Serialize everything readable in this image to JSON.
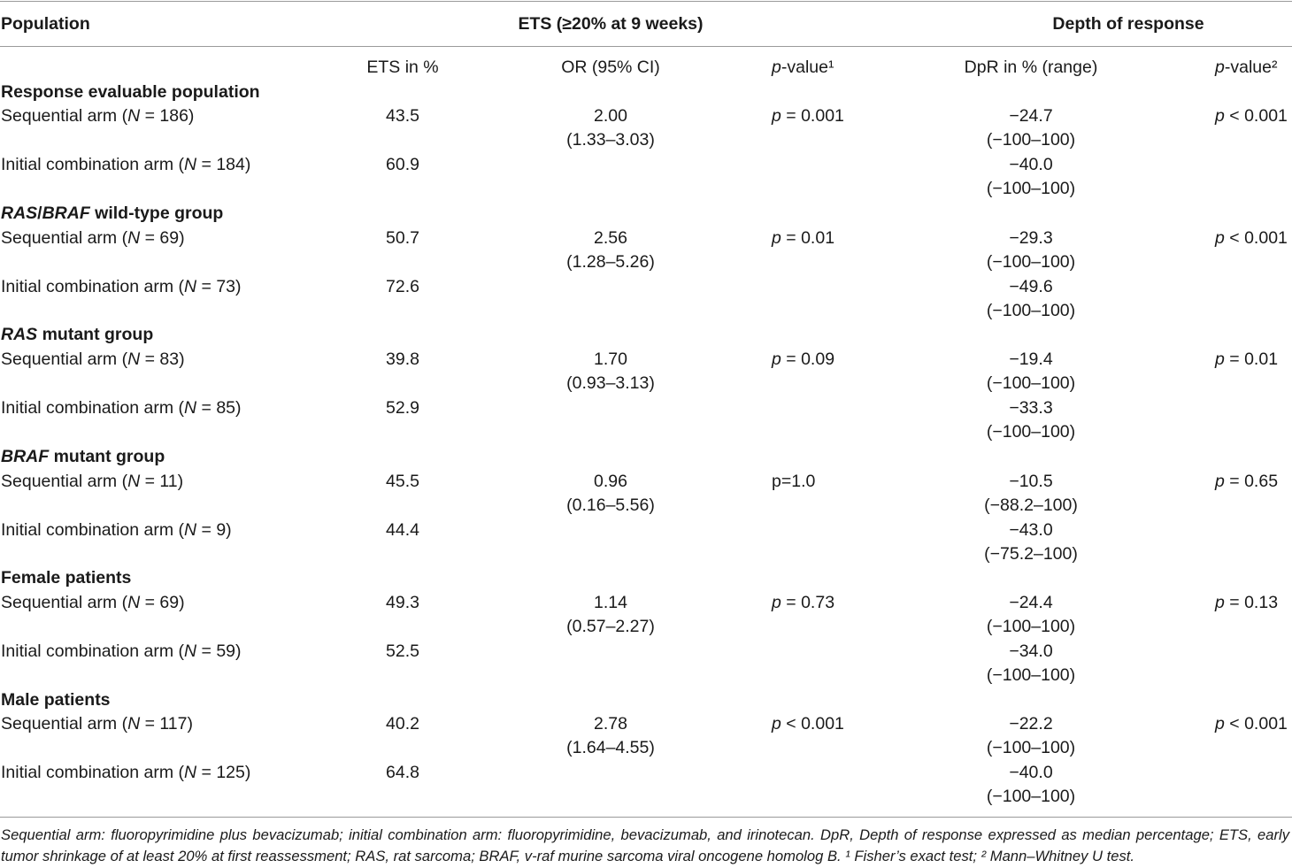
{
  "header": {
    "population": "Population",
    "ets_group": "ETS (≥20% at 9 weeks)",
    "depth_group": "Depth of response"
  },
  "columns": {
    "ets": "ETS in %",
    "or": "OR (95% CI)",
    "p1_prefix": "p",
    "p1_suffix": "-value¹",
    "dpr": "DpR in % (range)",
    "p2_prefix": "p",
    "p2_suffix": "-value²"
  },
  "groups": [
    {
      "title": "Response evaluable population",
      "rows": [
        {
          "arm": "Sequential arm (",
          "n": "N",
          "count": " = 186)",
          "ets": "43.5",
          "or": "2.00",
          "ci": "(1.33–3.03)",
          "p1_p": "p",
          "p1_v": " = 0.001",
          "dpr": "−24.7",
          "range": "(−100–100)",
          "p2_p": "p",
          "p2_v": " < 0.001"
        },
        {
          "arm": "Initial combination arm (",
          "n": "N",
          "count": " = 184)",
          "ets": "60.9",
          "or": "",
          "ci": "",
          "p1_p": "",
          "p1_v": "",
          "dpr": "−40.0",
          "range": "(−100–100)",
          "p2_p": "",
          "p2_v": ""
        }
      ]
    },
    {
      "title_it1": "RAS",
      "title_sep": "/",
      "title_it2": "BRAF",
      "title_rest": " wild-type group",
      "rows": [
        {
          "arm": "Sequential arm (",
          "n": "N",
          "count": " = 69)",
          "ets": "50.7",
          "or": "2.56",
          "ci": "(1.28–5.26)",
          "p1_p": "p",
          "p1_v": " = 0.01",
          "dpr": "−29.3",
          "range": "(−100–100)",
          "p2_p": "p",
          "p2_v": " < 0.001"
        },
        {
          "arm": "Initial combination arm (",
          "n": "N",
          "count": " = 73)",
          "ets": "72.6",
          "or": "",
          "ci": "",
          "p1_p": "",
          "p1_v": "",
          "dpr": "−49.6",
          "range": "(−100–100)",
          "p2_p": "",
          "p2_v": ""
        }
      ]
    },
    {
      "title_it1": "RAS",
      "title_rest": " mutant group",
      "rows": [
        {
          "arm": "Sequential arm (",
          "n": "N",
          "count": " = 83)",
          "ets": "39.8",
          "or": "1.70",
          "ci": "(0.93–3.13)",
          "p1_p": "p",
          "p1_v": " = 0.09",
          "dpr": "−19.4",
          "range": "(−100–100)",
          "p2_p": "p",
          "p2_v": " = 0.01"
        },
        {
          "arm": "Initial combination arm (",
          "n": "N",
          "count": " = 85)",
          "ets": "52.9",
          "or": "",
          "ci": "",
          "p1_p": "",
          "p1_v": "",
          "dpr": "−33.3",
          "range": "(−100–100)",
          "p2_p": "",
          "p2_v": ""
        }
      ]
    },
    {
      "title_it1": "BRAF",
      "title_rest": " mutant group",
      "rows": [
        {
          "arm": "Sequential arm (",
          "n": "N",
          "count": " = 11)",
          "ets": "45.5",
          "or": "0.96",
          "ci": "(0.16–5.56)",
          "p1_p": "",
          "p1_v": "p=1.0",
          "dpr": "−10.5",
          "range": "(−88.2–100)",
          "p2_p": "p",
          "p2_v": " = 0.65"
        },
        {
          "arm": "Initial combination arm (",
          "n": "N",
          "count": " = 9)",
          "ets": "44.4",
          "or": "",
          "ci": "",
          "p1_p": "",
          "p1_v": "",
          "dpr": "−43.0",
          "range": "(−75.2–100)",
          "p2_p": "",
          "p2_v": ""
        }
      ]
    },
    {
      "title": "Female patients",
      "rows": [
        {
          "arm": "Sequential arm (",
          "n": "N",
          "count": " = 69)",
          "ets": "49.3",
          "or": "1.14",
          "ci": "(0.57–2.27)",
          "p1_p": "p",
          "p1_v": " = 0.73",
          "dpr": "−24.4",
          "range": "(−100–100)",
          "p2_p": "p",
          "p2_v": " = 0.13"
        },
        {
          "arm": "Initial combination arm (",
          "n": "N",
          "count": " = 59)",
          "ets": "52.5",
          "or": "",
          "ci": "",
          "p1_p": "",
          "p1_v": "",
          "dpr": "−34.0",
          "range": "(−100–100)",
          "p2_p": "",
          "p2_v": ""
        }
      ]
    },
    {
      "title": "Male patients",
      "rows": [
        {
          "arm": "Sequential arm (",
          "n": "N",
          "count": " = 117)",
          "ets": "40.2",
          "or": "2.78",
          "ci": "(1.64–4.55)",
          "p1_p": "p",
          "p1_v": " < 0.001",
          "dpr": "−22.2",
          "range": "(−100–100)",
          "p2_p": "p",
          "p2_v": " < 0.001"
        },
        {
          "arm": "Initial combination arm (",
          "n": "N",
          "count": " = 125)",
          "ets": "64.8",
          "or": "",
          "ci": "",
          "p1_p": "",
          "p1_v": "",
          "dpr": "−40.0",
          "range": "(−100–100)",
          "p2_p": "",
          "p2_v": ""
        }
      ]
    }
  ],
  "footnote": "Sequential arm: fluoropyrimidine plus bevacizumab; initial combination arm: fluoropyrimidine, bevacizumab, and irinotecan. DpR, Depth of response expressed as median percentage; ETS, early tumor shrinkage of at least 20% at first reassessment; RAS, rat sarcoma; BRAF, v-raf murine sarcoma viral oncogene homolog B. ¹ Fisher’s exact test; ² Mann–Whitney U test."
}
